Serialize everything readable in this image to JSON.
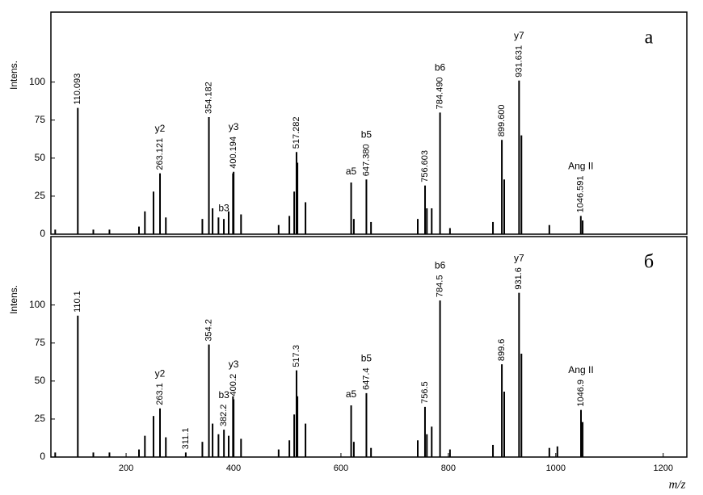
{
  "chart_data": [
    {
      "type": "stick",
      "panel_label": "а",
      "y_label": "Intens.",
      "color": "#000000",
      "xlim": [
        60,
        1244
      ],
      "ylim": [
        0,
        146
      ],
      "yticks": [
        0,
        25,
        50,
        75,
        100
      ],
      "x": [
        68,
        110.093,
        139,
        169,
        224,
        235,
        251,
        263.121,
        274,
        342,
        354.182,
        361,
        372,
        382,
        391,
        399,
        400.194,
        414,
        484,
        504,
        513,
        517.282,
        519,
        534,
        619,
        624,
        647.38,
        656,
        743,
        756.603,
        760,
        769,
        784.49,
        803,
        883,
        899.6,
        904,
        931.631,
        936,
        988,
        1046.591,
        1050
      ],
      "values": [
        3,
        83,
        3,
        3,
        5,
        15,
        28,
        40,
        11,
        10,
        77,
        17,
        11,
        10,
        15,
        40,
        41,
        13,
        6,
        12,
        28,
        54,
        47,
        21,
        34,
        10,
        36,
        8,
        10,
        32,
        17,
        17,
        80,
        4,
        8,
        62,
        36,
        101,
        65,
        6,
        12,
        9
      ],
      "x_labels": [
        null,
        "110.093",
        null,
        null,
        null,
        null,
        null,
        "263.121",
        null,
        null,
        "354.182",
        null,
        null,
        null,
        null,
        null,
        "400.194",
        null,
        null,
        null,
        null,
        "517.282",
        null,
        null,
        null,
        null,
        "647.380",
        null,
        null,
        "756.603",
        null,
        null,
        "784.490",
        null,
        null,
        "899.600",
        null,
        "931.631",
        null,
        null,
        "1046.591",
        null
      ],
      "ion_labels": [
        null,
        null,
        null,
        null,
        null,
        null,
        null,
        "y2",
        null,
        null,
        null,
        null,
        null,
        "b3",
        null,
        null,
        "y3",
        null,
        null,
        null,
        null,
        null,
        null,
        null,
        "a5",
        null,
        "b5",
        null,
        null,
        null,
        null,
        null,
        "b6",
        null,
        null,
        null,
        null,
        "y7",
        null,
        null,
        "Ang II",
        null
      ]
    },
    {
      "type": "stick",
      "panel_label": "б",
      "y_label": "Intens.",
      "x_label": "m/z",
      "color": "#000000",
      "xlim": [
        60,
        1244
      ],
      "ylim": [
        0,
        145
      ],
      "yticks": [
        0,
        25,
        50,
        75,
        100
      ],
      "xticks": [
        200,
        400,
        600,
        800,
        1000,
        1200
      ],
      "x": [
        68,
        110.1,
        139,
        169,
        224,
        235,
        251,
        263.1,
        274,
        311.1,
        342,
        354.2,
        361,
        372,
        382.2,
        391,
        399,
        400.2,
        414,
        484,
        504,
        513,
        517.3,
        519,
        534,
        619,
        624,
        647.4,
        656,
        743,
        756.5,
        760,
        769,
        784.5,
        803,
        883,
        899.6,
        904,
        931.6,
        936,
        988,
        1003,
        1046.9,
        1050
      ],
      "values": [
        3,
        93,
        3,
        3,
        5,
        14,
        27,
        32,
        13,
        3,
        10,
        74,
        22,
        15,
        18,
        14,
        40,
        38,
        12,
        5,
        11,
        28,
        57,
        40,
        22,
        34,
        10,
        42,
        6,
        11,
        33,
        15,
        20,
        103,
        5,
        8,
        61,
        43,
        108,
        68,
        6,
        7,
        31,
        23
      ],
      "x_labels": [
        null,
        "110.1",
        null,
        null,
        null,
        null,
        null,
        "263.1",
        null,
        "311.1",
        null,
        "354.2",
        null,
        null,
        "382.2",
        null,
        null,
        "400.2",
        null,
        null,
        null,
        null,
        "517.3",
        null,
        null,
        null,
        null,
        "647.4",
        null,
        null,
        "756.5",
        null,
        null,
        "784.5",
        null,
        null,
        "899.6",
        null,
        "931.6",
        null,
        null,
        null,
        "1046.9",
        null
      ],
      "ion_labels": [
        null,
        null,
        null,
        null,
        null,
        null,
        null,
        "y2",
        null,
        null,
        null,
        null,
        null,
        null,
        "b3",
        null,
        null,
        "y3",
        null,
        null,
        null,
        null,
        null,
        null,
        null,
        "a5",
        null,
        "b5",
        null,
        null,
        null,
        null,
        null,
        "b6",
        null,
        null,
        null,
        null,
        "y7",
        null,
        null,
        null,
        "Ang II",
        null
      ]
    }
  ]
}
